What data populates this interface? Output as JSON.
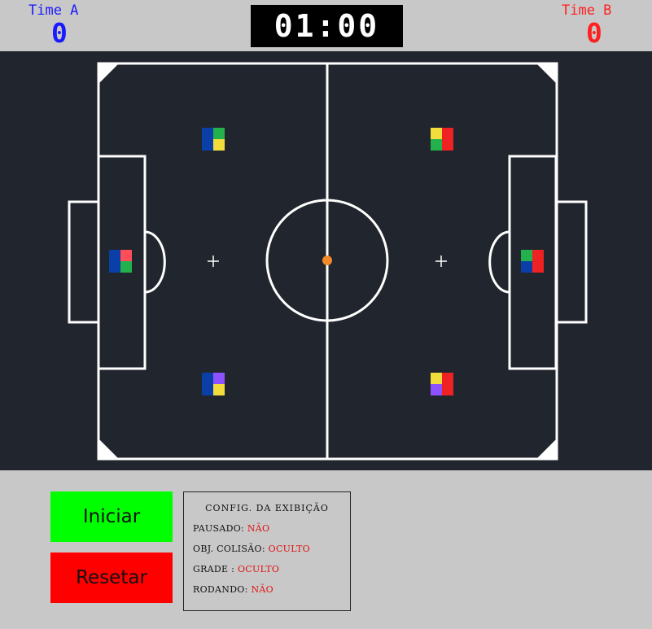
{
  "header": {
    "team_a": {
      "label": "Time A",
      "score": "0",
      "color": "#1a1aff"
    },
    "team_b": {
      "label": "Time B",
      "score": "0",
      "color": "#ff2020"
    },
    "timer": "01:00"
  },
  "field": {
    "background": "#21252d",
    "line_color": "#ffffff",
    "ball_color": "#f28a2a",
    "robots": [
      {
        "team": "A",
        "role": "goalkeeper",
        "colors": [
          "#0a3fa8",
          "#ff4d5a",
          "#0a3fa8",
          "#22b14c"
        ]
      },
      {
        "team": "A",
        "role": "player-top",
        "colors": [
          "#0a3fa8",
          "#22b14c",
          "#0a3fa8",
          "#f3dd3c"
        ]
      },
      {
        "team": "A",
        "role": "player-bottom",
        "colors": [
          "#0a3fa8",
          "#8c52ff",
          "#0a3fa8",
          "#f3dd3c"
        ]
      },
      {
        "team": "B",
        "role": "goalkeeper",
        "colors": [
          "#22b14c",
          "#ee2222",
          "#0a3fa8",
          "#ee2222"
        ]
      },
      {
        "team": "B",
        "role": "player-top",
        "colors": [
          "#f3dd3c",
          "#ee2222",
          "#22b14c",
          "#ee2222"
        ]
      },
      {
        "team": "B",
        "role": "player-bottom",
        "colors": [
          "#f3dd3c",
          "#ee2222",
          "#8c52ff",
          "#ee2222"
        ]
      }
    ]
  },
  "controls": {
    "start_label": "Iniciar",
    "reset_label": "Resetar"
  },
  "config": {
    "title": "CONFIG. DA EXIBIÇÃO",
    "paused_label": "PAUSADO:",
    "paused_value": "NÃO",
    "collision_label": "OBJ. COLISÃO:",
    "collision_value": "OCULTO",
    "grid_label": "GRADE :",
    "grid_value": "OCULTO",
    "running_label": "RODANDO:",
    "running_value": "NÃO"
  }
}
